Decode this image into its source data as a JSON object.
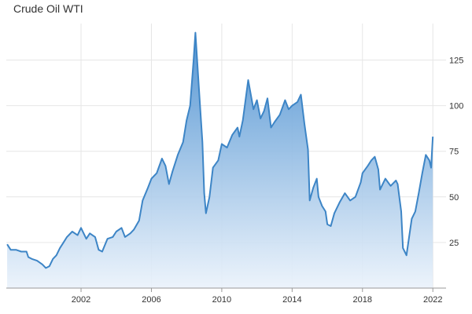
{
  "chart_data": {
    "type": "area",
    "title": "Crude Oil WTI",
    "xlabel": "",
    "ylabel": "",
    "x_ticks": [
      2002,
      2006,
      2010,
      2014,
      2018,
      2022
    ],
    "x_tick_labels": [
      "2002",
      "2006",
      "2010",
      "2014",
      "2018",
      "2022"
    ],
    "y_ticks": [
      25,
      50,
      75,
      100,
      125
    ],
    "y_tick_labels": [
      "25",
      "50",
      "75",
      "100",
      "125"
    ],
    "xlim": [
      1997.75,
      2022.75
    ],
    "ylim": [
      0,
      145
    ],
    "grid": true,
    "colors": {
      "line": "#3d85c6",
      "fill_top": "#4a8fd0",
      "fill_bottom": "#eaf2fb",
      "grid": "#e6e6e6"
    },
    "series": [
      {
        "x": [
          1997.8,
          1998.0,
          1998.3,
          1998.6,
          1998.9,
          1999.0,
          1999.2,
          1999.5,
          1999.8,
          2000.0,
          2000.2,
          2000.4,
          2000.6,
          2000.8,
          2001.0,
          2001.2,
          2001.5,
          2001.8,
          2002.0,
          2002.3,
          2002.5,
          2002.8,
          2003.0,
          2003.2,
          2003.5,
          2003.8,
          2004.0,
          2004.3,
          2004.5,
          2004.8,
          2005.0,
          2005.3,
          2005.5,
          2005.8,
          2006.0,
          2006.3,
          2006.6,
          2006.8,
          2007.0,
          2007.2,
          2007.5,
          2007.8,
          2008.0,
          2008.2,
          2008.4,
          2008.5,
          2008.7,
          2008.9,
          2009.0,
          2009.1,
          2009.3,
          2009.5,
          2009.8,
          2010.0,
          2010.3,
          2010.6,
          2010.9,
          2011.0,
          2011.2,
          2011.5,
          2011.8,
          2012.0,
          2012.2,
          2012.4,
          2012.6,
          2012.8,
          2013.0,
          2013.3,
          2013.6,
          2013.8,
          2014.0,
          2014.3,
          2014.5,
          2014.7,
          2014.9,
          2015.0,
          2015.2,
          2015.4,
          2015.5,
          2015.7,
          2015.9,
          2016.0,
          2016.2,
          2016.4,
          2016.7,
          2017.0,
          2017.3,
          2017.6,
          2017.9,
          2018.0,
          2018.3,
          2018.5,
          2018.7,
          2018.9,
          2019.0,
          2019.3,
          2019.6,
          2019.9,
          2020.0,
          2020.2,
          2020.3,
          2020.5,
          2020.8,
          2021.0,
          2021.2,
          2021.4,
          2021.6,
          2021.8,
          2021.9,
          2022.0
        ],
        "y": [
          24,
          21,
          21,
          20,
          20,
          17,
          16,
          15,
          13,
          11,
          12,
          16,
          18,
          22,
          25,
          28,
          31,
          29,
          33,
          27,
          30,
          28,
          21,
          20,
          27,
          28,
          31,
          33,
          28,
          30,
          32,
          37,
          48,
          55,
          60,
          63,
          71,
          67,
          57,
          64,
          73,
          80,
          92,
          100,
          125,
          140,
          110,
          80,
          52,
          41,
          50,
          66,
          70,
          79,
          77,
          84,
          88,
          83,
          92,
          114,
          98,
          103,
          93,
          97,
          104,
          88,
          91,
          95,
          103,
          98,
          100,
          102,
          106,
          90,
          76,
          48,
          55,
          60,
          50,
          45,
          42,
          35,
          34,
          41,
          47,
          52,
          48,
          50,
          58,
          63,
          67,
          70,
          72,
          65,
          54,
          60,
          56,
          59,
          57,
          42,
          22,
          18,
          38,
          42,
          52,
          63,
          73,
          70,
          66,
          83
        ]
      }
    ]
  }
}
